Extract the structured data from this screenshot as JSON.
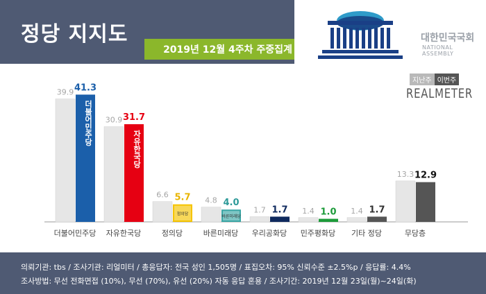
{
  "header": {
    "title": "정당 지지도",
    "subtitle": "2019년 12월 4주차 주중집계",
    "assembly_name": "대한민국국회",
    "assembly_en": "NATIONAL ASSEMBLY"
  },
  "legend": {
    "prev": "지난주",
    "curr": "이번주"
  },
  "brand": "REALMETER",
  "colors": {
    "header_bg": "#4f5a73",
    "subtitle_bg": "#8bb72b",
    "prev_bar": "#e6e6e6"
  },
  "chart_data": {
    "type": "bar",
    "categories": [
      "더불어민주당",
      "자유한국당",
      "정의당",
      "바른미래당",
      "우리공화당",
      "민주평화당",
      "기타 정당",
      "무당층"
    ],
    "series": [
      {
        "name": "지난주",
        "values": [
          39.9,
          30.9,
          6.6,
          4.8,
          1.7,
          1.4,
          1.4,
          13.3
        ]
      },
      {
        "name": "이번주",
        "values": [
          41.3,
          31.7,
          5.7,
          4.0,
          1.7,
          1.0,
          1.7,
          12.9
        ]
      }
    ],
    "current_colors": [
      "#1b5faa",
      "#e60012",
      "#f5c400",
      "#3aa6a5",
      "#0f2a5e",
      "#1d9b3a",
      "#555555",
      "#555555"
    ],
    "current_label_colors": [
      "#1b5faa",
      "#e60012",
      "#e8b400",
      "#2e9a99",
      "#0f2a5e",
      "#1d9b3a",
      "#333333",
      "#111111"
    ],
    "bar_logos": [
      "더불어민주당",
      "자유한국당",
      "정의당",
      "바른미래당",
      "",
      "",
      "",
      ""
    ],
    "ylim": [
      0,
      45
    ]
  },
  "footer": {
    "line1": "의뢰기관: tbs / 조사기관: 리얼미터 / 총응답자: 전국 성인 1,505명 / 표집오차: 95% 신뢰수준 ±2.5%p / 응답률: 4.4%",
    "line2": "조사방법: 무선 전화면접 (10%), 무선 (70%), 유선 (20%) 자동 응답 혼용 / 조사기간: 2019년 12월 23일(월)~24일(화)"
  }
}
